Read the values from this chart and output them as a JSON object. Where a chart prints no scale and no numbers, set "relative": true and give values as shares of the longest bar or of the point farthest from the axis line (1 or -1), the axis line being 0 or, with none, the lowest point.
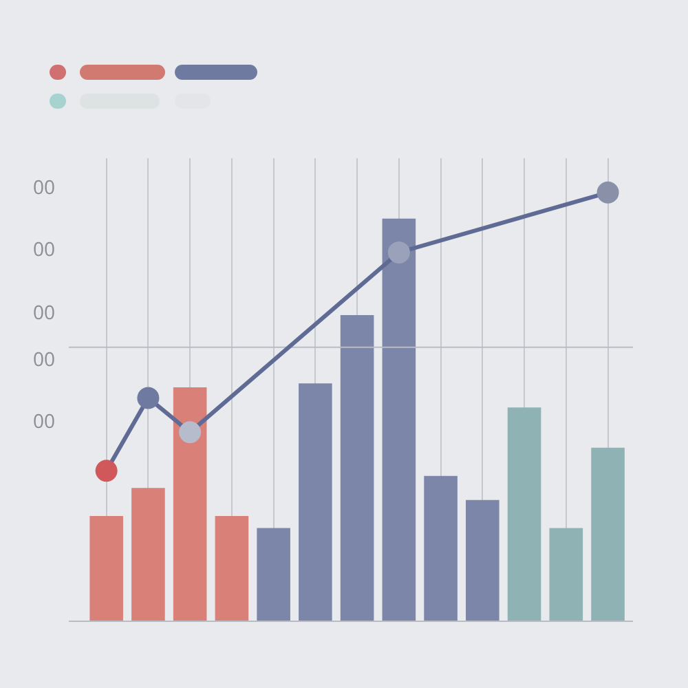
{
  "chart_data": [
    {
      "type": "bar",
      "relative": true,
      "categories": [
        null,
        null,
        null,
        null,
        null,
        null,
        null,
        null,
        null,
        null,
        null,
        null,
        null
      ],
      "series": [
        {
          "values": [
            0.26,
            0.33,
            0.58,
            0.26,
            0.23,
            0.59,
            0.76,
            1,
            0.36,
            0.3,
            0.53,
            0.23,
            0.43
          ],
          "colors": [
            "#d98078",
            "#d98078",
            "#d98078",
            "#d98078",
            "#7c86a8",
            "#7c86a8",
            "#7c86a8",
            "#7c86a8",
            "#7c86a8",
            "#7c86a8",
            "#8fb3b5",
            "#8fb3b5",
            "#8fb3b5"
          ]
        }
      ],
      "annotations": [
        "00",
        "00",
        "00",
        "00",
        "00"
      ],
      "ref_lines": [
        {
          "axis": "y",
          "value": 0.68
        }
      ],
      "grid": "x",
      "legend": false
    },
    {
      "type": "line",
      "relative": true,
      "categories": [
        null,
        null,
        null,
        null,
        null,
        null,
        null,
        null,
        null,
        null,
        null,
        null,
        null
      ],
      "series": [
        {
          "color": "#5f6b94",
          "values": [
            0.35,
            0.52,
            0.44,
            null,
            null,
            null,
            null,
            0.86,
            null,
            null,
            null,
            null,
            1
          ],
          "colors": [
            "#d0585a",
            "#6f7aa0",
            "#b6bccc",
            null,
            null,
            null,
            null,
            "#9aa2bb",
            null,
            null,
            null,
            null,
            "#8a90a8"
          ]
        }
      ],
      "marker": "circle",
      "line_style": "solid",
      "legend": false
    }
  ]
}
